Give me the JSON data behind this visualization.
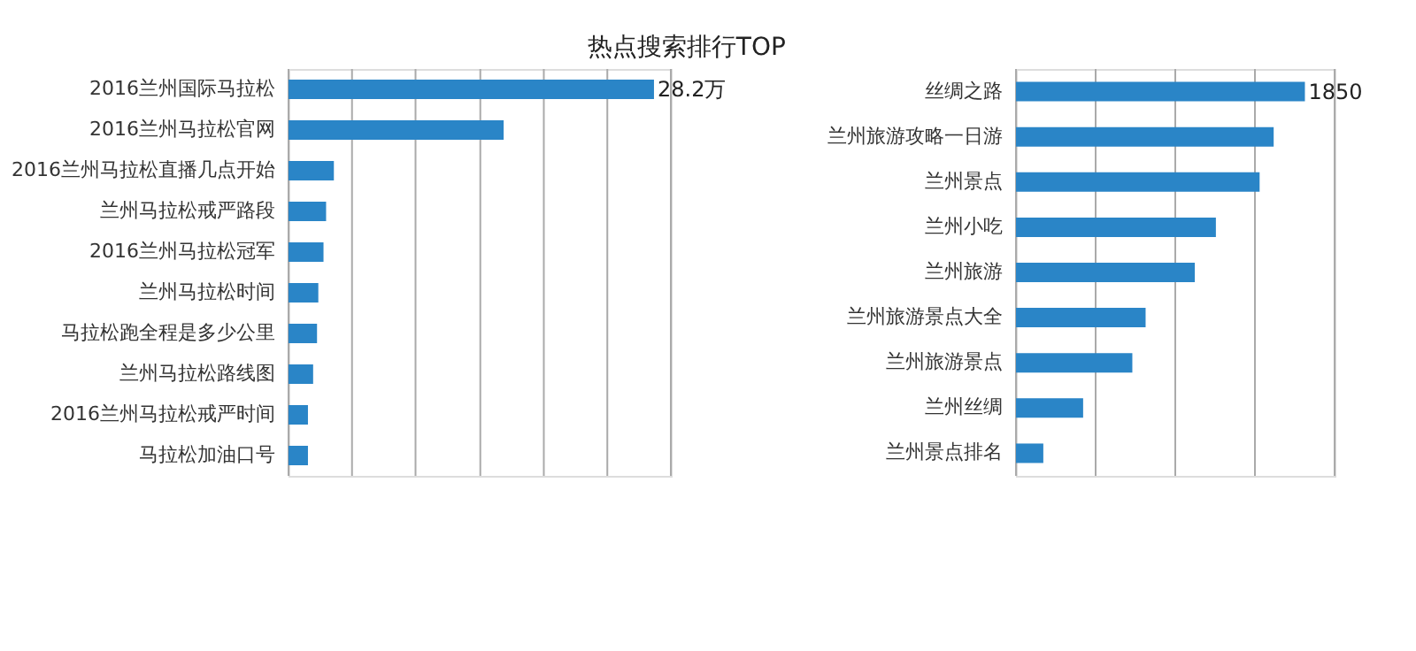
{
  "chart_data": [
    {
      "type": "bar",
      "orientation": "horizontal",
      "title": "热点搜索排行TOP",
      "categories": [
        "2016兰州国际马拉松",
        "2016兰州马拉松官网",
        "2016兰州马拉松直播几点开始",
        "兰州马拉松戒严路段",
        "2016兰州马拉松冠军",
        "兰州马拉松时间",
        "马拉松跑全程是多少公里",
        "兰州马拉松路线图",
        "2016兰州马拉松戒严时间",
        "马拉松加油口号"
      ],
      "values": [
        28.2,
        16.6,
        3.5,
        2.9,
        2.7,
        2.3,
        2.2,
        1.9,
        1.5,
        1.5
      ],
      "value_labels": [
        "28.2万",
        null,
        null,
        null,
        null,
        null,
        null,
        null,
        null,
        null
      ],
      "color": "#2a85c7",
      "xlim": [
        0,
        29.5
      ],
      "xticks": [
        {
          "value": 0,
          "label": null
        },
        {
          "value": 4.9,
          "label": null
        },
        {
          "value": 9.8,
          "label": null
        },
        {
          "value": 14.8,
          "label": null
        },
        {
          "value": 19.7,
          "label": null
        },
        {
          "value": 24.6,
          "label": null
        },
        {
          "value": 29.5,
          "label": null
        }
      ],
      "grid": "x",
      "tick_labels": "y"
    },
    {
      "type": "bar",
      "orientation": "horizontal",
      "categories": [
        "丝绸之路",
        "兰州旅游攻略一日游",
        "兰州景点",
        "兰州小吃",
        "兰州旅游",
        "兰州旅游景点大全",
        "兰州旅游景点",
        "兰州丝绸",
        "兰州景点排名"
      ],
      "values": [
        1850,
        1650,
        1560,
        1280,
        1145,
        830,
        745,
        430,
        175
      ],
      "value_labels": [
        "1850",
        null,
        null,
        null,
        null,
        null,
        null,
        null,
        null
      ],
      "color": "#2a85c7",
      "xlim": [
        0,
        2040
      ],
      "xticks": [
        {
          "value": 0,
          "label": null
        },
        {
          "value": 510,
          "label": null
        },
        {
          "value": 1020,
          "label": null
        },
        {
          "value": 1530,
          "label": null
        },
        {
          "value": 2040,
          "label": null
        }
      ],
      "grid": "x",
      "tick_labels": "y"
    }
  ]
}
